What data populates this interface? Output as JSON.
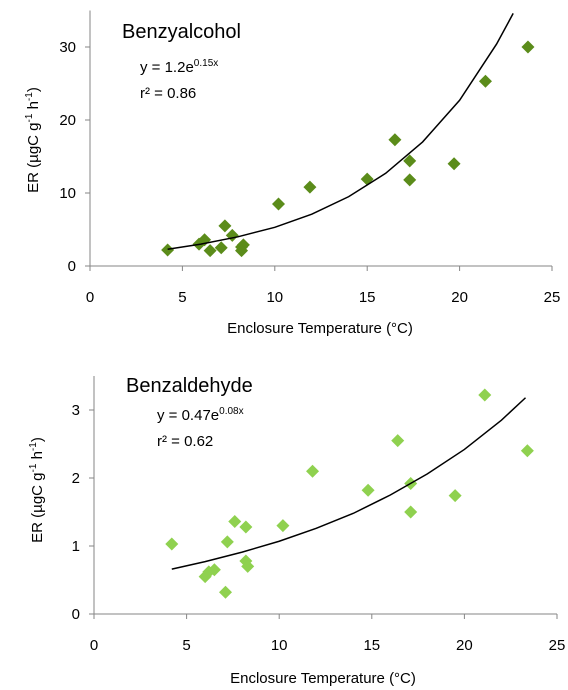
{
  "chart_data": [
    {
      "type": "scatter",
      "title": "Benzyalcohol",
      "equation": [
        {
          "text": "y = 1.2e"
        },
        {
          "text": "0.15x",
          "sup": true
        }
      ],
      "r2": "r² = 0.86",
      "y_label": [
        {
          "text": "ER (µgC g"
        },
        {
          "text": "-1",
          "sup": true
        },
        {
          "text": " h"
        },
        {
          "text": "-1",
          "sup": true
        },
        {
          "text": ")"
        }
      ],
      "x_label": "Enclosure Temperature (°C)",
      "color": "#5b8c1a",
      "x": [
        4.2,
        5.9,
        6.2,
        6.5,
        7.1,
        7.3,
        7.7,
        8.2,
        8.3,
        8.2,
        10.2,
        11.9,
        15.0,
        16.5,
        17.3,
        17.3,
        19.7,
        21.4,
        23.7
      ],
      "values": [
        2.2,
        3.0,
        3.6,
        2.1,
        2.5,
        5.5,
        4.2,
        2.6,
        2.9,
        2.1,
        8.5,
        10.8,
        11.9,
        17.3,
        14.4,
        11.8,
        14.0,
        25.3,
        30.0
      ],
      "trendline": {
        "color": "#000000",
        "x": [
          4.2,
          6,
          8,
          10,
          12,
          14,
          16,
          18,
          20,
          22,
          22.9
        ],
        "y": [
          2.3,
          3.0,
          4.0,
          5.3,
          7.1,
          9.5,
          12.7,
          17.0,
          22.7,
          30.4,
          34.6
        ]
      },
      "xlim": [
        0,
        25
      ],
      "xticks": [
        0,
        5,
        10,
        15,
        20,
        25
      ],
      "ylim": [
        0,
        35
      ],
      "yticks": [
        0,
        10,
        20,
        30
      ]
    },
    {
      "type": "scatter",
      "title": "Benzaldehyde",
      "equation": [
        {
          "text": "y = 0.47e"
        },
        {
          "text": "0.08x",
          "sup": true
        }
      ],
      "r2": "r² = 0.62",
      "y_label": [
        {
          "text": "ER (µgC g"
        },
        {
          "text": "-1",
          "sup": true
        },
        {
          "text": " h"
        },
        {
          "text": "-1",
          "sup": true
        },
        {
          "text": ")"
        }
      ],
      "x_label": "Enclosure Temperature (°C)",
      "color": "#8fd14f",
      "x": [
        4.2,
        6.0,
        6.2,
        6.5,
        7.1,
        7.2,
        7.6,
        8.2,
        8.2,
        8.3,
        10.2,
        11.8,
        14.8,
        16.4,
        17.1,
        17.1,
        19.5,
        21.1,
        23.4
      ],
      "values": [
        1.03,
        0.55,
        0.62,
        0.65,
        0.32,
        1.06,
        1.36,
        1.28,
        0.78,
        0.7,
        1.3,
        2.1,
        1.82,
        2.55,
        1.92,
        1.5,
        1.74,
        3.22,
        2.4
      ],
      "trendline": {
        "color": "#000000",
        "x": [
          4.2,
          6,
          8,
          10,
          12,
          14,
          16,
          18,
          20,
          22,
          23.3
        ],
        "y": [
          0.66,
          0.77,
          0.91,
          1.07,
          1.26,
          1.48,
          1.75,
          2.06,
          2.42,
          2.85,
          3.18
        ]
      },
      "xlim": [
        0,
        25
      ],
      "xticks": [
        0,
        5,
        10,
        15,
        20,
        25
      ],
      "ylim": [
        0,
        3.5
      ],
      "yticks": [
        0,
        1,
        2,
        3
      ]
    }
  ]
}
